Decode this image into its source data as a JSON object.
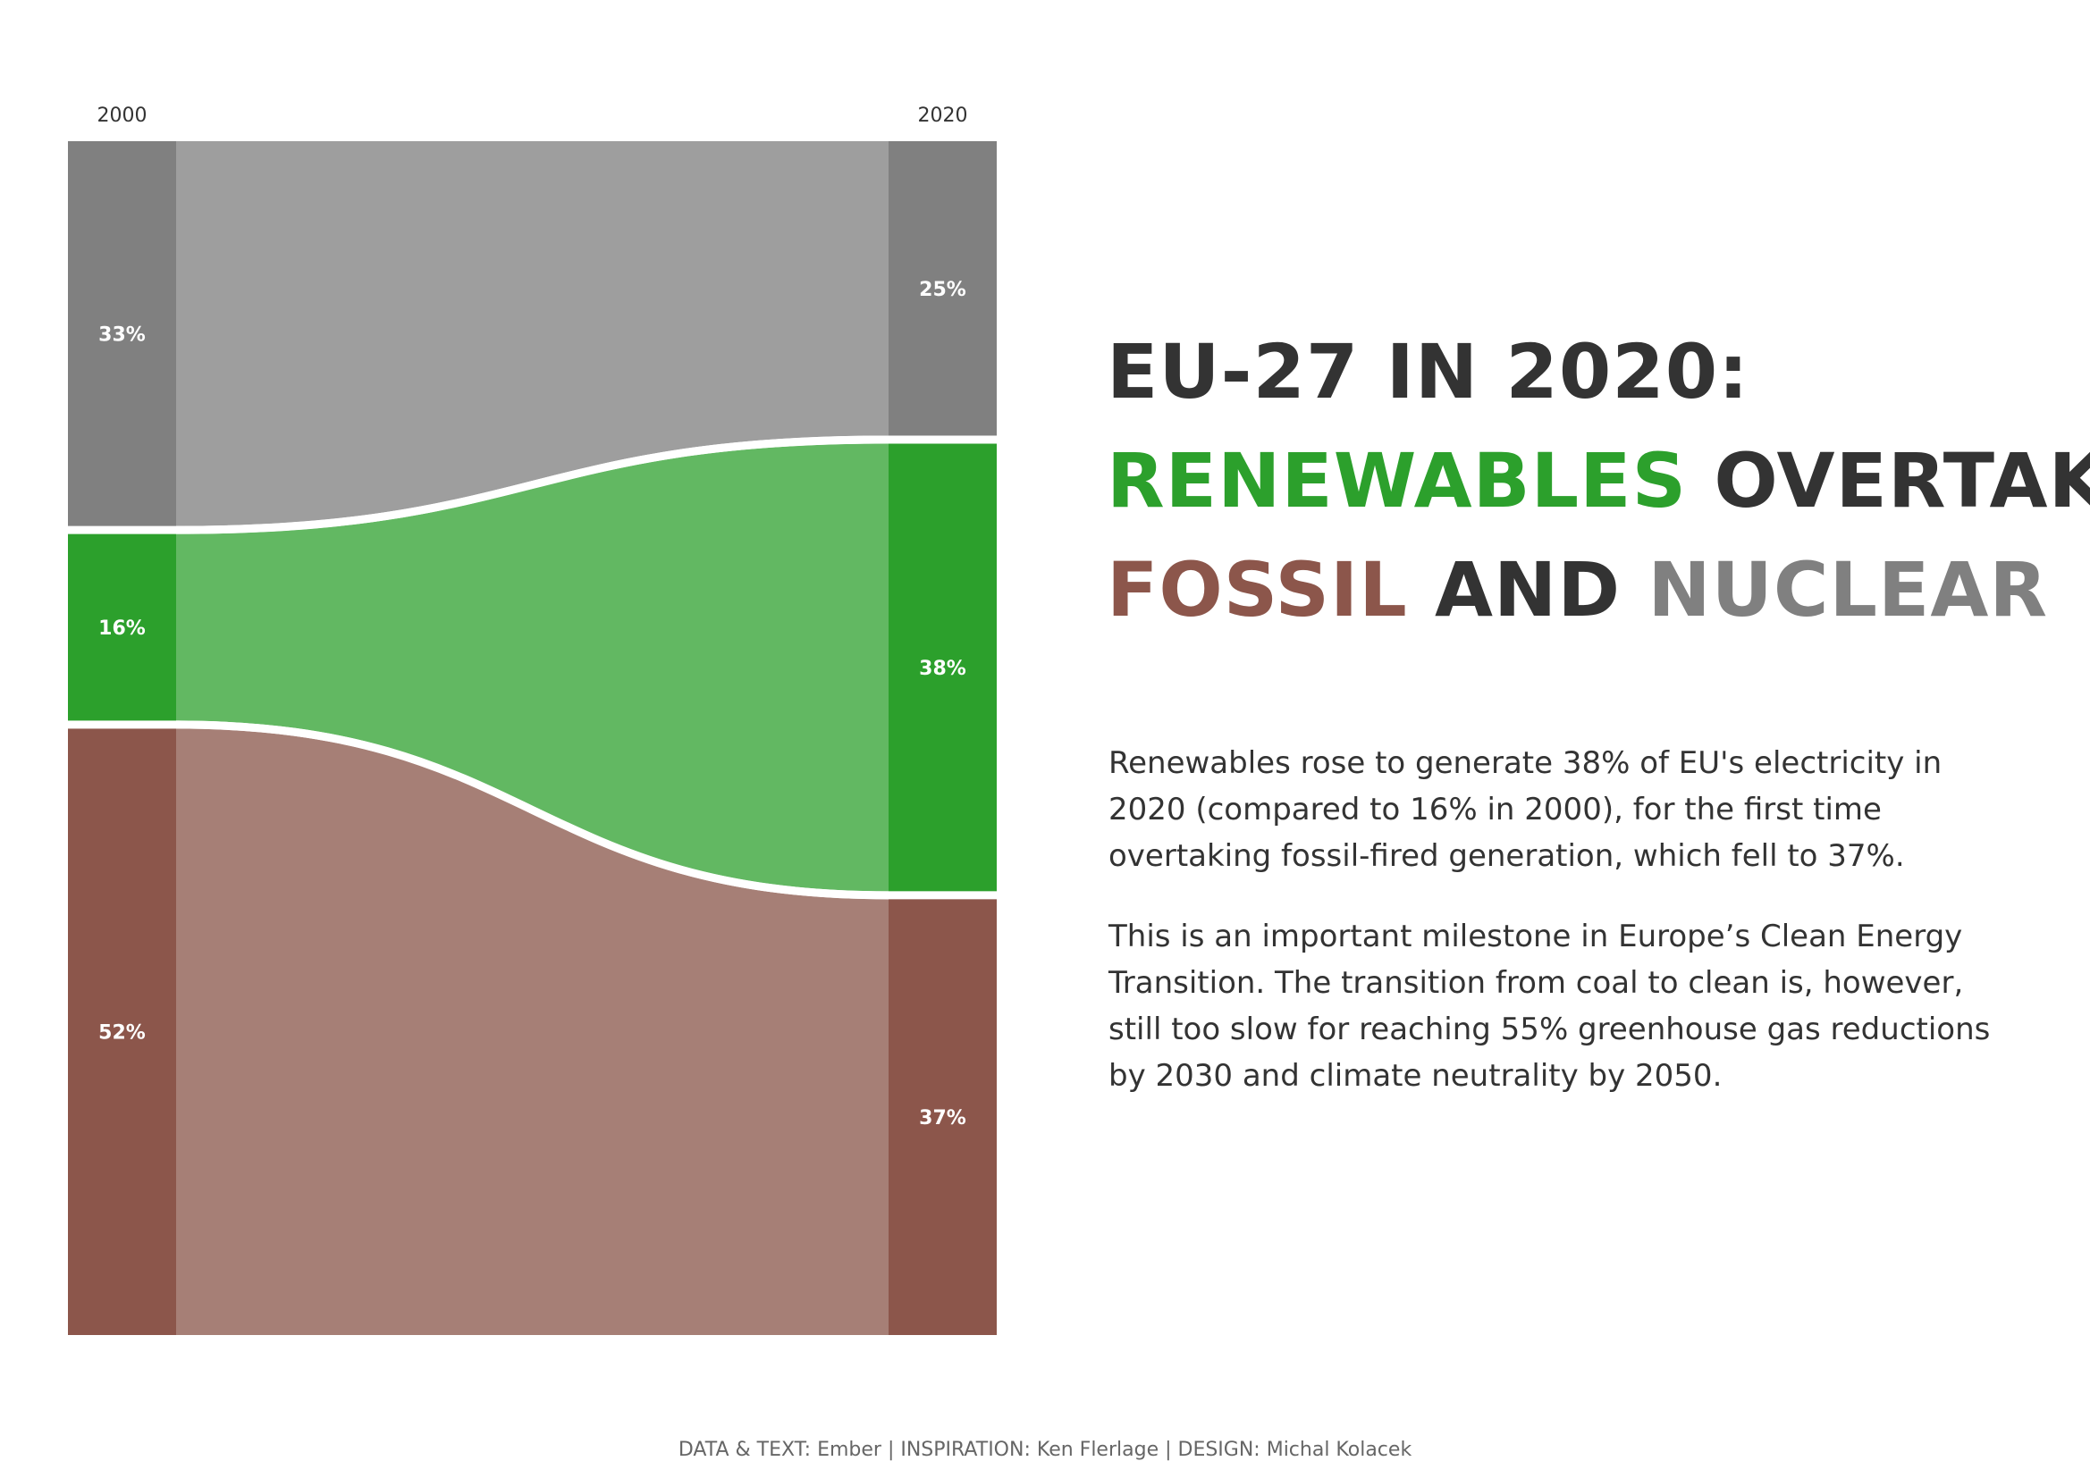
{
  "headline": {
    "line1": "EU-27 IN 2020:",
    "renewables_word": "RENEWABLES",
    "overtake_word": "OVERTAKE",
    "fossil_word": "FOSSIL",
    "and_word": "AND",
    "nuclear_word": "NUCLEAR"
  },
  "body": {
    "paragraph1": "Renewables rose to generate 38% of EU's electricity in 2020 (compared to 16% in 2000), for the first time overtaking fossil-fired generation, which fell to 37%.",
    "paragraph2": "This is an important milestone in Europe’s Clean Energy Transition. The transition from coal to clean is, however, still too slow for reaching 55% greenhouse gas reductions by 2030 and climate neutrality by 2050."
  },
  "footer": {
    "credits": "DATA & TEXT: Ember | INSPIRATION: Ken Flerlage | DESIGN: Michal Kolacek"
  },
  "colors": {
    "nuclear": "#808080",
    "nuclear_flow": "#9e9e9e",
    "renewables": "#2ca02c",
    "renewables_flow": "#62b862",
    "fossil": "#8c564b",
    "fossil_flow": "#a67f76",
    "text_dark": "#333333"
  },
  "chart_data": {
    "type": "sankey",
    "years": [
      "2000",
      "2020"
    ],
    "order": [
      "Nuclear",
      "Renewables",
      "Fossil"
    ],
    "series": [
      {
        "key": "nuclear",
        "values": [
          33,
          25
        ],
        "labels": [
          "33%",
          "25%"
        ]
      },
      {
        "key": "renewables",
        "values": [
          16,
          38
        ],
        "labels": [
          "16%",
          "38%"
        ]
      },
      {
        "key": "fossil",
        "values": [
          52,
          37
        ],
        "labels": [
          "52%",
          "37%"
        ]
      }
    ]
  }
}
